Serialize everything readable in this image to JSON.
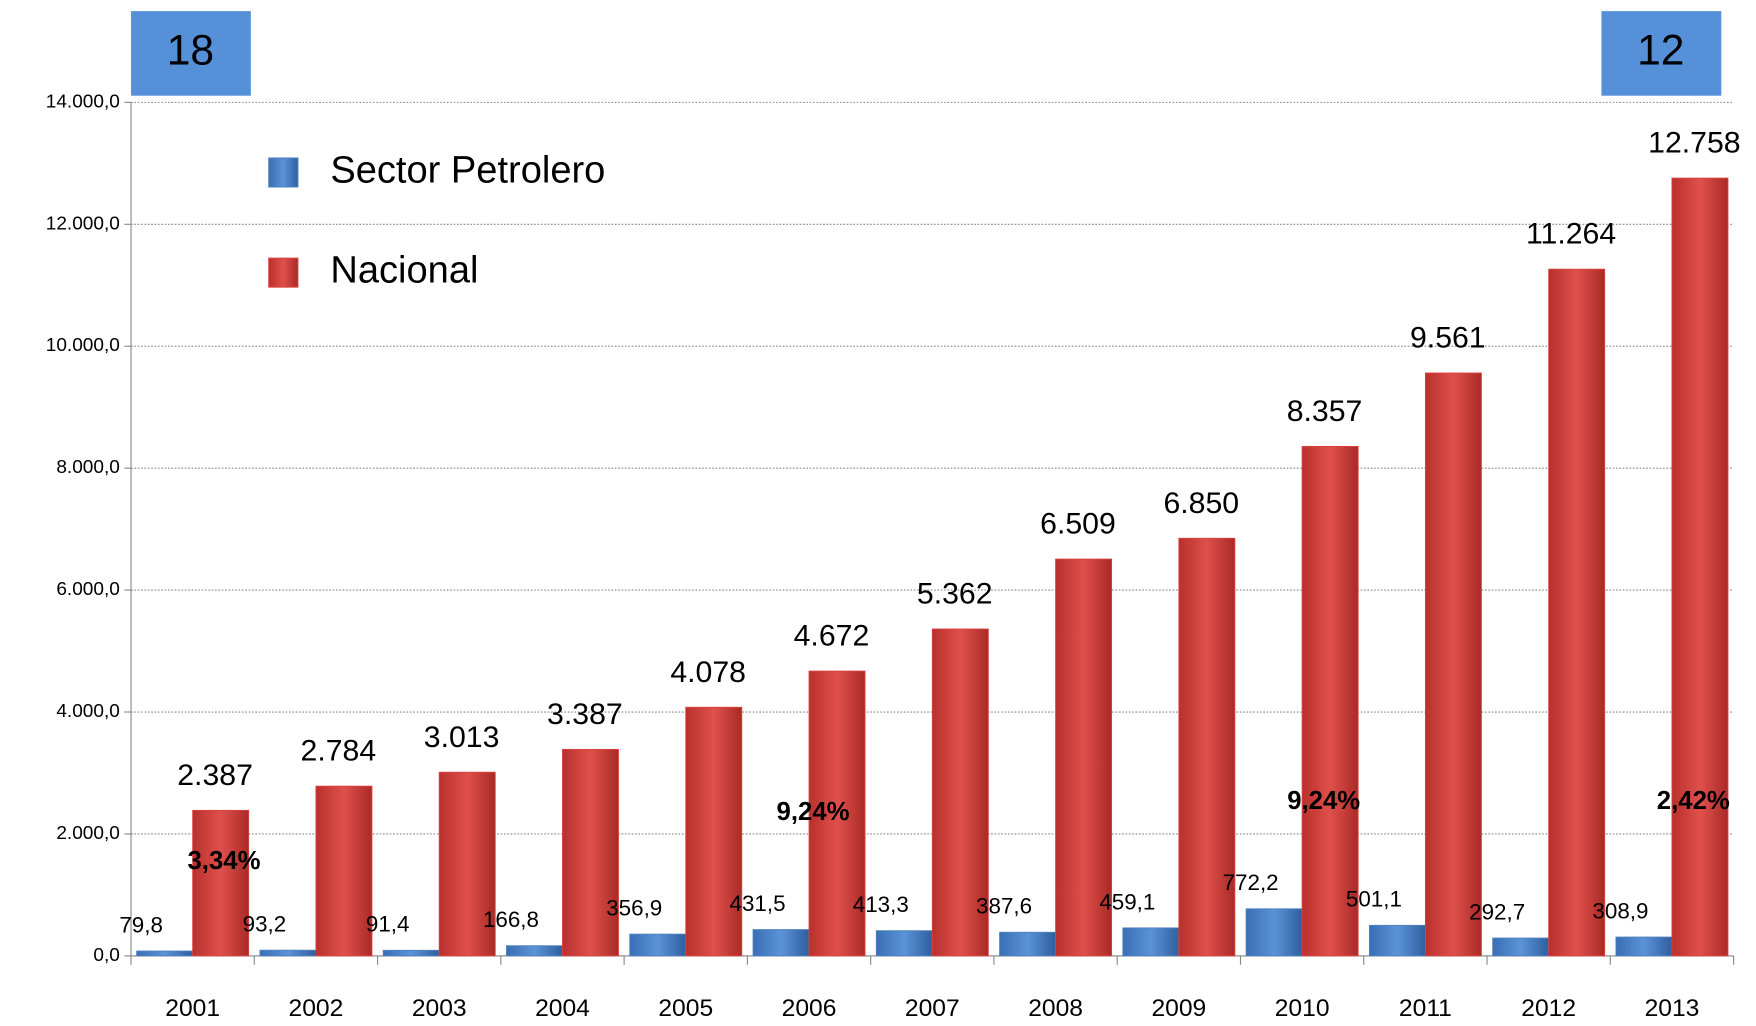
{
  "chart_data": {
    "type": "bar",
    "categories": [
      "2001",
      "2002",
      "2003",
      "2004",
      "2005",
      "2006",
      "2007",
      "2008",
      "2009",
      "2010",
      "2011",
      "2012",
      "2013"
    ],
    "series": [
      {
        "name": "Sector Petrolero",
        "color": "#4f81bd",
        "values": [
          79.8,
          93.2,
          91.4,
          166.8,
          356.9,
          431.5,
          413.3,
          387.6,
          459.1,
          772.2,
          501.1,
          292.7,
          308.9
        ],
        "value_labels": [
          "79,8",
          "93,2",
          "91,4",
          "166,8",
          "356,9",
          "431,5",
          "413,3",
          "387,6",
          "459,1",
          "772,2",
          "501,1",
          "292,7",
          "308,9"
        ]
      },
      {
        "name": "Nacional",
        "color": "#d9433f",
        "values": [
          2387,
          2784,
          3013,
          3387,
          4078,
          4672,
          5362,
          6509,
          6850,
          8357,
          9561,
          11264,
          12758
        ],
        "value_labels": [
          "2.387",
          "2.784",
          "3.013",
          "3.387",
          "4.078",
          "4.672",
          "5.362",
          "6.509",
          "6.850",
          "8.357",
          "9.561",
          "11.264",
          "12.758"
        ]
      }
    ],
    "ylim": [
      0,
      14000
    ],
    "yticks": [
      {
        "value": 0,
        "label": "0,0"
      },
      {
        "value": 2000,
        "label": "2.000,0"
      },
      {
        "value": 4000,
        "label": "4.000,0"
      },
      {
        "value": 6000,
        "label": "6.000,0"
      },
      {
        "value": 8000,
        "label": "8.000,0"
      },
      {
        "value": 10000,
        "label": "10.000,0"
      },
      {
        "value": 12000,
        "label": "12.000,0"
      },
      {
        "value": 14000,
        "label": "14.000,0"
      }
    ],
    "grid": true,
    "legend": "upper left",
    "annotations": [
      "18",
      "12",
      "3,34%",
      "9,24%",
      "9,24%",
      "2,42%"
    ]
  }
}
